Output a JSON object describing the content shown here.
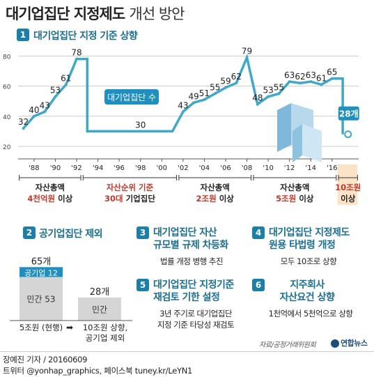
{
  "title": {
    "bold": "대기업집단 지정제도",
    "light": "개선 방안"
  },
  "section1": {
    "num": "1",
    "label": "대기업집단 지정 기준 상향"
  },
  "chart_data": {
    "type": "line",
    "title": "대기업집단 지정 기준 상향",
    "series_label": "대기업집단 수",
    "y_ticks": [
      20,
      40,
      60,
      80
    ],
    "ylim": [
      20,
      82
    ],
    "x_ticks": [
      "'88",
      "'90",
      "'92",
      "'94",
      "'96",
      "'98",
      "'00",
      "'02",
      "'04",
      "'06",
      "'08",
      "'10",
      "'12",
      "'14",
      "'16"
    ],
    "points": [
      {
        "x": 1987,
        "y": 32,
        "label": "32"
      },
      {
        "x": 1988,
        "y": 40,
        "label": "40"
      },
      {
        "x": 1989,
        "y": 43,
        "label": "43"
      },
      {
        "x": 1990,
        "y": 53,
        "label": "53"
      },
      {
        "x": 1991,
        "y": 61,
        "label": "61"
      },
      {
        "x": 1992,
        "y": 78,
        "label": "78"
      },
      {
        "x": 1993,
        "y": 78,
        "label": ""
      },
      {
        "x": 1993,
        "y": 30,
        "label": ""
      },
      {
        "x": 1998,
        "y": 30,
        "label": "30"
      },
      {
        "x": 2001,
        "y": 30,
        "label": ""
      },
      {
        "x": 2002,
        "y": 43,
        "label": "43"
      },
      {
        "x": 2003,
        "y": 49,
        "label": "49"
      },
      {
        "x": 2004,
        "y": 51,
        "label": "51"
      },
      {
        "x": 2005,
        "y": 55,
        "label": "55"
      },
      {
        "x": 2006,
        "y": 59,
        "label": "59"
      },
      {
        "x": 2007,
        "y": 62,
        "label": "62"
      },
      {
        "x": 2008,
        "y": 79,
        "label": "79"
      },
      {
        "x": 2009,
        "y": 48,
        "label": "48"
      },
      {
        "x": 2010,
        "y": 53,
        "label": "53"
      },
      {
        "x": 2011,
        "y": 55,
        "label": "55"
      },
      {
        "x": 2012,
        "y": 63,
        "label": "63"
      },
      {
        "x": 2013,
        "y": 62,
        "label": "62"
      },
      {
        "x": 2014,
        "y": 63,
        "label": "63"
      },
      {
        "x": 2015,
        "y": 61,
        "label": "61"
      },
      {
        "x": 2016,
        "y": 65,
        "label": "65"
      },
      {
        "x": 2017,
        "y": 65,
        "label": ""
      },
      {
        "x": 2017,
        "y": 28,
        "label": ""
      }
    ],
    "new_value": {
      "x": 2017.5,
      "y": 28,
      "label": "28개"
    },
    "periods": [
      {
        "x_from": 1987,
        "x_to": 1992,
        "line1": "자산총액",
        "line2_red": "4천억원",
        "line2_blk": "이상"
      },
      {
        "x_from": 1993,
        "x_to": 2001,
        "line1_red": "자산순위 기준",
        "line2_red": "30대",
        "line2_blk": "기업집단"
      },
      {
        "x_from": 2002,
        "x_to": 2008,
        "line1": "자산총액",
        "line2_red": "2조원",
        "line2_blk": "이상"
      },
      {
        "x_from": 2009,
        "x_to": 2016,
        "line1": "자산총액",
        "line2_red": "5조원",
        "line2_blk": "이상"
      },
      {
        "x_from": 2017,
        "x_to": 2018,
        "line1_red": "10조원",
        "line2_blk": "이상",
        "highlight": true
      }
    ]
  },
  "section2": {
    "num": "2",
    "label": "공기업집단 제외",
    "bar1": {
      "total": "65개",
      "public_label": "공기업 12",
      "private_label": "민간 53",
      "public": 12,
      "private": 53
    },
    "bar2": {
      "total": "28개",
      "private_label": "민간",
      "private": 28
    },
    "cap1": "5조원 (현행)",
    "arrow": "➡",
    "cap2_line1": "10조원 상향,",
    "cap2_line2": "공기업 제외"
  },
  "section3": {
    "num": "3",
    "label1": "대기업집단 자산",
    "label2": "규모별 규제 차등화",
    "sub": "법률 개정 병행 추진"
  },
  "section4": {
    "num": "4",
    "label1": "대기업집단 지정제도",
    "label2": "원용 타법령 개정",
    "sub": "모두 10조로 상향"
  },
  "section5": {
    "num": "5",
    "label1": "대기업집단 지정기준",
    "label2": "재검토 기한 설정",
    "sub1": "3년 주기로 대기업집단",
    "sub2": "지정 기준 타당성 재검토"
  },
  "section6": {
    "num": "6",
    "label1": "지주회사",
    "label2": "자산요건 상향",
    "sub": "1천억에서 5천억으로 상향"
  },
  "source": "자료/공정거래위원회",
  "logo": "연합뉴스",
  "footer": {
    "line1": "장예진 기자 / 20160609",
    "line2": "트위터 @yonhap_graphics, 페이스북 tuney.kr/LeYN1"
  },
  "colors": {
    "accent": "#1b7fa8",
    "line": "#3fa8c8",
    "red": "#c0392b",
    "highlight": "#fbe3c8"
  }
}
